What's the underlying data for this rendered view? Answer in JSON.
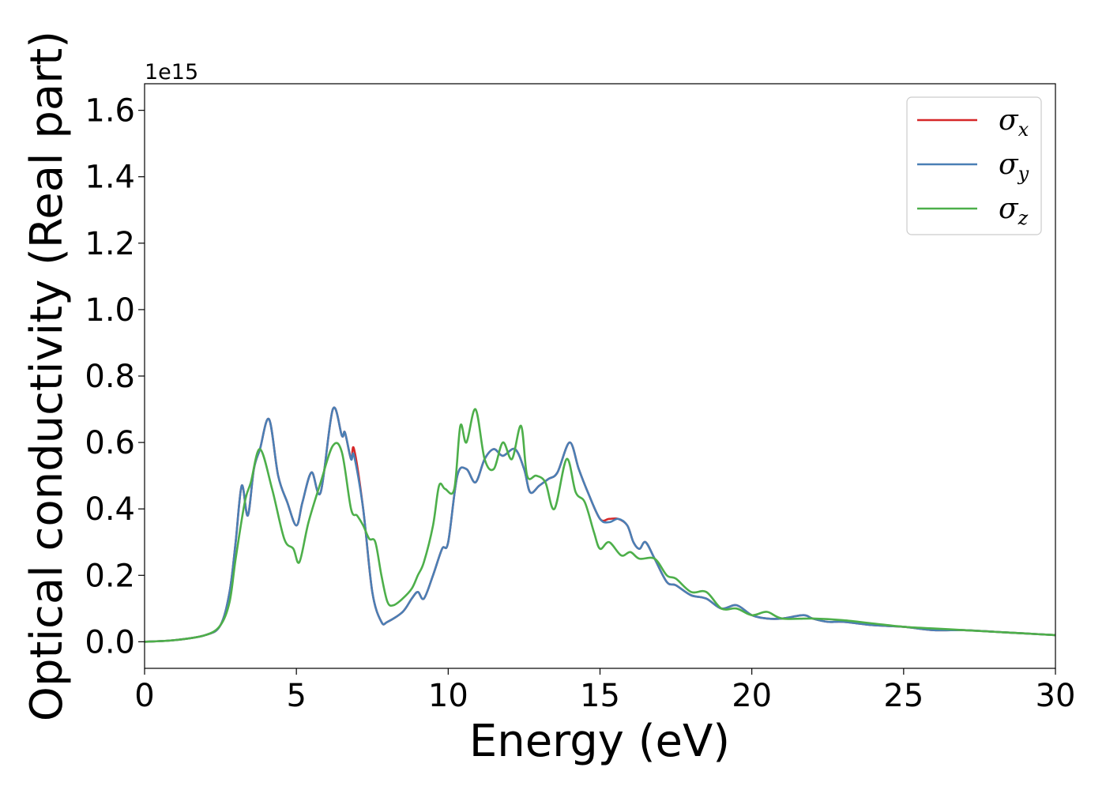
{
  "chart_data": {
    "type": "line",
    "xlabel": "Energy (eV)",
    "ylabel": "Optical conductivity (Real part)",
    "y_offset_text": "1e15",
    "y_multiplier": 1000000000000000.0,
    "xlim": [
      0,
      30
    ],
    "ylim": [
      -0.08,
      1.68
    ],
    "x_ticks": [
      0,
      5,
      10,
      15,
      20,
      25,
      30
    ],
    "x_tick_labels": [
      "0",
      "5",
      "10",
      "15",
      "20",
      "25",
      "30"
    ],
    "y_ticks": [
      0.0,
      0.2,
      0.4,
      0.6,
      0.8,
      1.0,
      1.2,
      1.4,
      1.6
    ],
    "y_tick_labels": [
      "0.0",
      "0.2",
      "0.4",
      "0.6",
      "0.8",
      "1.0",
      "1.2",
      "1.4",
      "1.6"
    ],
    "grid": false,
    "legend_position": "top-right",
    "series": [
      {
        "name": "σ_x",
        "label_main": "σ",
        "label_sub": "x",
        "color": "#d62728",
        "x": [
          0,
          1,
          2,
          2.5,
          2.8,
          3.0,
          3.2,
          3.4,
          3.6,
          3.8,
          4.1,
          4.4,
          4.7,
          5.0,
          5.2,
          5.5,
          5.8,
          6.2,
          6.5,
          6.6,
          6.8,
          6.9,
          7.2,
          7.5,
          7.8,
          8.0,
          8.5,
          8.8,
          9.0,
          9.2,
          9.5,
          9.8,
          10.0,
          10.3,
          10.6,
          10.9,
          11.2,
          11.5,
          11.8,
          12.2,
          12.5,
          12.7,
          13.0,
          13.3,
          13.6,
          14.0,
          14.3,
          14.6,
          15.0,
          15.3,
          15.6,
          15.9,
          16.1,
          16.3,
          16.5,
          16.8,
          17.2,
          17.5,
          18.0,
          18.5,
          19.0,
          19.5,
          20.0,
          20.5,
          21.0,
          21.7,
          22.0,
          22.5,
          23.0,
          24.0,
          25.0,
          26.0,
          27.0,
          28.0,
          29.0,
          30.0
        ],
        "values": [
          0,
          0.005,
          0.02,
          0.05,
          0.15,
          0.3,
          0.47,
          0.38,
          0.52,
          0.58,
          0.67,
          0.5,
          0.42,
          0.35,
          0.42,
          0.51,
          0.45,
          0.7,
          0.62,
          0.63,
          0.55,
          0.58,
          0.4,
          0.15,
          0.06,
          0.06,
          0.09,
          0.13,
          0.15,
          0.13,
          0.2,
          0.28,
          0.3,
          0.5,
          0.52,
          0.48,
          0.55,
          0.58,
          0.56,
          0.58,
          0.52,
          0.45,
          0.47,
          0.49,
          0.51,
          0.6,
          0.52,
          0.45,
          0.37,
          0.37,
          0.37,
          0.35,
          0.3,
          0.28,
          0.3,
          0.25,
          0.18,
          0.17,
          0.14,
          0.13,
          0.1,
          0.11,
          0.08,
          0.07,
          0.07,
          0.08,
          0.07,
          0.06,
          0.06,
          0.05,
          0.045,
          0.035,
          0.035,
          0.03,
          0.025,
          0.02
        ]
      },
      {
        "name": "σ_y",
        "label_main": "σ",
        "label_sub": "y",
        "color": "#4a7fb5",
        "x": [
          0,
          1,
          2,
          2.5,
          2.8,
          3.0,
          3.2,
          3.4,
          3.6,
          3.8,
          4.1,
          4.4,
          4.7,
          5.0,
          5.2,
          5.5,
          5.8,
          6.2,
          6.5,
          6.6,
          6.8,
          6.9,
          7.2,
          7.5,
          7.8,
          8.0,
          8.5,
          8.8,
          9.0,
          9.2,
          9.5,
          9.8,
          10.0,
          10.3,
          10.6,
          10.9,
          11.2,
          11.5,
          11.8,
          12.2,
          12.5,
          12.7,
          13.0,
          13.3,
          13.6,
          14.0,
          14.3,
          14.6,
          15.0,
          15.3,
          15.6,
          15.9,
          16.1,
          16.3,
          16.5,
          16.8,
          17.2,
          17.5,
          18.0,
          18.5,
          19.0,
          19.5,
          20.0,
          20.5,
          21.0,
          21.7,
          22.0,
          22.5,
          23.0,
          24.0,
          25.0,
          26.0,
          27.0,
          28.0,
          29.0,
          30.0
        ],
        "values": [
          0,
          0.005,
          0.02,
          0.05,
          0.15,
          0.3,
          0.47,
          0.38,
          0.52,
          0.58,
          0.67,
          0.5,
          0.42,
          0.35,
          0.42,
          0.51,
          0.45,
          0.7,
          0.62,
          0.63,
          0.55,
          0.56,
          0.4,
          0.15,
          0.06,
          0.06,
          0.09,
          0.13,
          0.15,
          0.13,
          0.2,
          0.28,
          0.3,
          0.5,
          0.52,
          0.48,
          0.55,
          0.58,
          0.56,
          0.58,
          0.52,
          0.45,
          0.47,
          0.49,
          0.51,
          0.6,
          0.52,
          0.45,
          0.37,
          0.36,
          0.37,
          0.35,
          0.3,
          0.28,
          0.3,
          0.25,
          0.18,
          0.17,
          0.14,
          0.13,
          0.1,
          0.11,
          0.08,
          0.07,
          0.07,
          0.08,
          0.07,
          0.06,
          0.06,
          0.05,
          0.045,
          0.035,
          0.035,
          0.03,
          0.025,
          0.02
        ]
      },
      {
        "name": "σ_z",
        "label_main": "σ",
        "label_sub": "z",
        "color": "#4daf4a",
        "x": [
          0,
          1,
          2,
          2.5,
          2.8,
          3.0,
          3.3,
          3.5,
          3.8,
          4.2,
          4.6,
          4.9,
          5.1,
          5.4,
          5.8,
          6.2,
          6.5,
          6.8,
          7.0,
          7.2,
          7.4,
          7.6,
          7.8,
          8.0,
          8.2,
          8.5,
          8.8,
          9.0,
          9.2,
          9.5,
          9.7,
          9.9,
          10.2,
          10.4,
          10.6,
          10.9,
          11.2,
          11.5,
          11.8,
          12.1,
          12.4,
          12.6,
          12.9,
          13.2,
          13.5,
          13.9,
          14.2,
          14.5,
          14.8,
          15.0,
          15.3,
          15.7,
          16.0,
          16.3,
          16.8,
          17.2,
          17.5,
          18.0,
          18.5,
          19.0,
          19.5,
          20.0,
          20.5,
          21.0,
          22.0,
          23.0,
          24.0,
          25.0,
          26.0,
          27.0,
          28.0,
          29.0,
          30.0
        ],
        "values": [
          0,
          0.005,
          0.02,
          0.05,
          0.12,
          0.25,
          0.42,
          0.48,
          0.58,
          0.46,
          0.31,
          0.28,
          0.24,
          0.36,
          0.48,
          0.59,
          0.57,
          0.4,
          0.38,
          0.35,
          0.31,
          0.3,
          0.2,
          0.12,
          0.11,
          0.13,
          0.16,
          0.2,
          0.24,
          0.35,
          0.47,
          0.46,
          0.46,
          0.65,
          0.6,
          0.7,
          0.55,
          0.52,
          0.6,
          0.55,
          0.65,
          0.5,
          0.5,
          0.48,
          0.4,
          0.55,
          0.45,
          0.42,
          0.33,
          0.28,
          0.3,
          0.26,
          0.27,
          0.25,
          0.25,
          0.2,
          0.19,
          0.15,
          0.15,
          0.1,
          0.1,
          0.08,
          0.09,
          0.07,
          0.07,
          0.065,
          0.055,
          0.045,
          0.04,
          0.035,
          0.03,
          0.025,
          0.02
        ]
      }
    ]
  }
}
